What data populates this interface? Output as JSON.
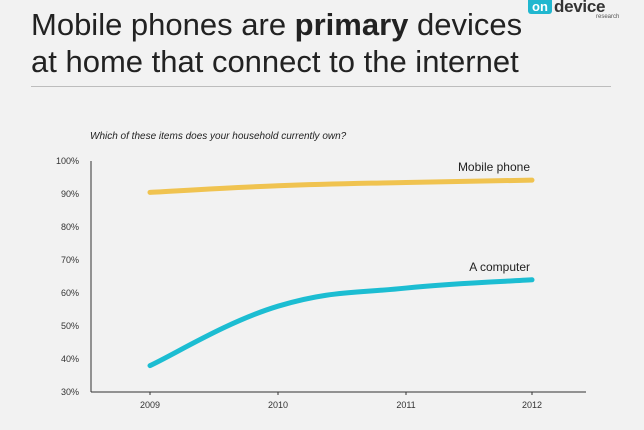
{
  "title": {
    "pre": "Mobile phones are ",
    "bold": "primary",
    "post": " devices at home that connect to the internet"
  },
  "logo": {
    "on": "on",
    "device": "device",
    "research": "research"
  },
  "chart_data": {
    "type": "line",
    "title": "Which of these items does your household currently own?",
    "x": [
      "2009",
      "2010",
      "2011",
      "2012"
    ],
    "y_ticks": [
      "30%",
      "40%",
      "50%",
      "60%",
      "70%",
      "80%",
      "90%",
      "100%"
    ],
    "ylim": [
      30,
      100
    ],
    "grid": false,
    "series": [
      {
        "name": "Mobile phone",
        "values": [
          90.5,
          92.5,
          93.5,
          94.2
        ],
        "color": "#f0c350"
      },
      {
        "name": "A computer",
        "values": [
          38,
          56,
          61.5,
          64
        ],
        "color": "#1cbdd2"
      }
    ]
  }
}
